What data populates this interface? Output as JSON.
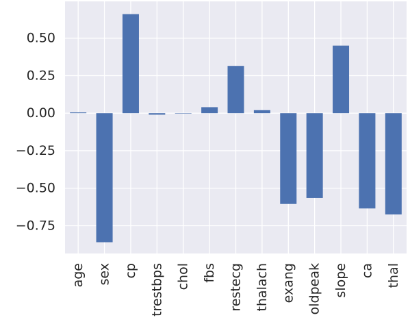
{
  "chart_data": {
    "type": "bar",
    "title": "",
    "xlabel": "",
    "ylabel": "",
    "categories": [
      "age",
      "sex",
      "cp",
      "trestbps",
      "chol",
      "fbs",
      "restecg",
      "thalach",
      "exang",
      "oldpeak",
      "slope",
      "ca",
      "thal"
    ],
    "values": [
      0.005,
      -0.86,
      0.66,
      -0.01,
      0.0,
      0.04,
      0.315,
      0.02,
      -0.605,
      -0.565,
      0.45,
      -0.635,
      -0.675
    ],
    "ylim": [
      -0.935,
      0.745
    ],
    "yticks": [
      -0.75,
      -0.5,
      -0.25,
      0.0,
      0.25,
      0.5
    ],
    "ytick_labels": [
      "−0.75",
      "−0.50",
      "−0.25",
      "0.00",
      "0.25",
      "0.50"
    ],
    "grid": true,
    "colors": {
      "bar": "#4c72b0",
      "background": "#eaeaf2",
      "grid": "#ffffff"
    }
  }
}
